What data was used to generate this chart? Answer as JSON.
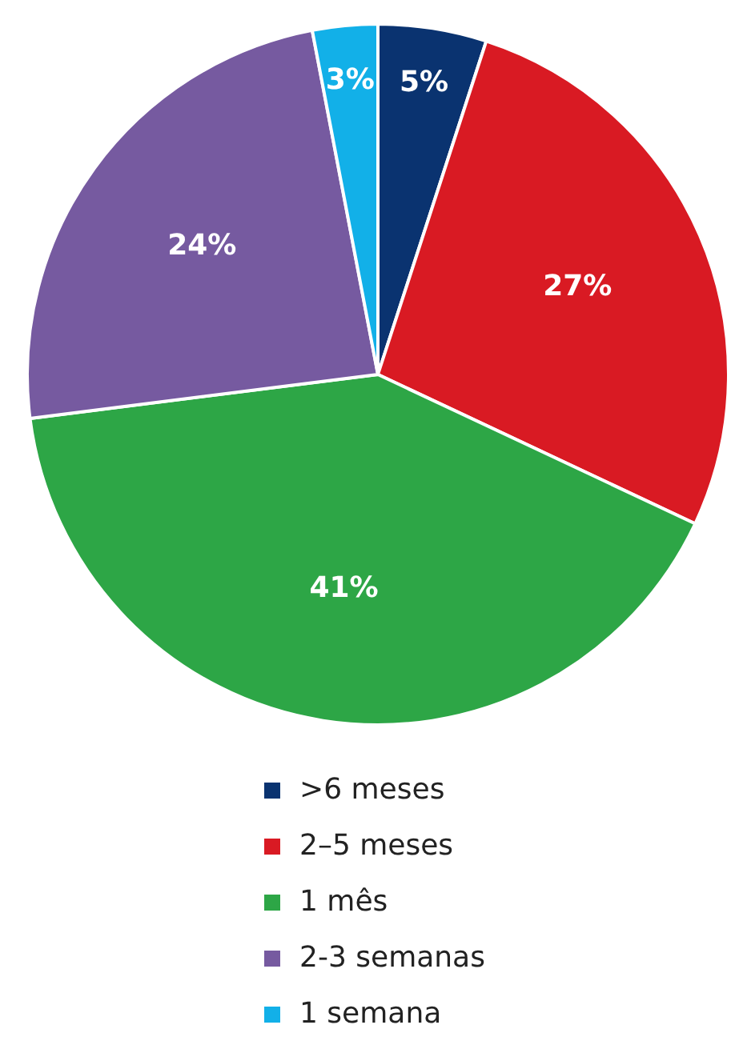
{
  "chart_data": {
    "type": "pie",
    "categories": [
      ">6 meses",
      "2–5 meses",
      "1 mês",
      "2-3 semanas",
      "1 semana"
    ],
    "values": [
      5,
      27,
      41,
      24,
      3
    ],
    "colors": [
      "#0a3370",
      "#d91a23",
      "#2da646",
      "#765aa0",
      "#12b0e8"
    ],
    "value_labels": [
      "5%",
      "27%",
      "41%",
      "24%",
      "3%"
    ],
    "legend": "bottom"
  }
}
